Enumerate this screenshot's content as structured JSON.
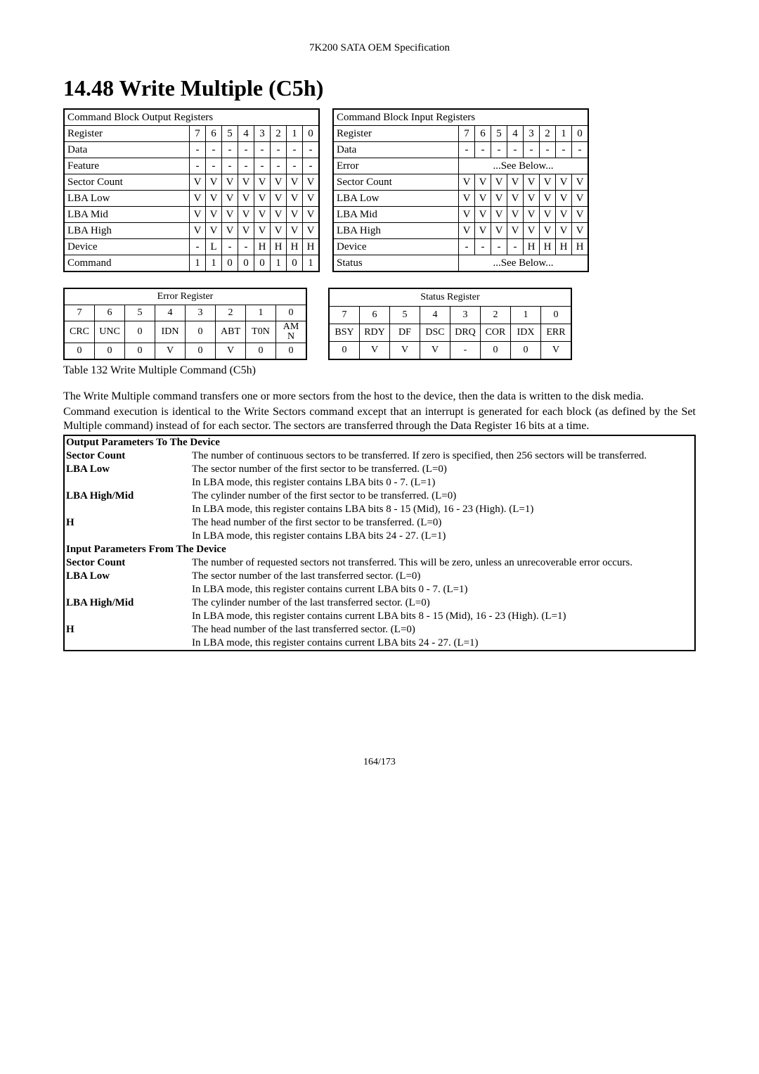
{
  "header": "7K200 SATA OEM Specification",
  "section_title": "14.48   Write Multiple (C5h)",
  "output_block_title": "Command Block Output Registers",
  "input_block_title": "Command Block Input Registers",
  "bit_cols": [
    "7",
    "6",
    "5",
    "4",
    "3",
    "2",
    "1",
    "0"
  ],
  "output_rows": [
    {
      "label": "Register",
      "cells": [
        "7",
        "6",
        "5",
        "4",
        "3",
        "2",
        "1",
        "0"
      ]
    },
    {
      "label": "Data",
      "cells": [
        "-",
        "-",
        "-",
        "-",
        "-",
        "-",
        "-",
        "-"
      ]
    },
    {
      "label": "Feature",
      "cells": [
        "-",
        "-",
        "-",
        "-",
        "-",
        "-",
        "-",
        "-"
      ]
    },
    {
      "label": "Sector Count",
      "cells": [
        "V",
        "V",
        "V",
        "V",
        "V",
        "V",
        "V",
        "V"
      ]
    },
    {
      "label": "LBA Low",
      "cells": [
        "V",
        "V",
        "V",
        "V",
        "V",
        "V",
        "V",
        "V"
      ]
    },
    {
      "label": "LBA Mid",
      "cells": [
        "V",
        "V",
        "V",
        "V",
        "V",
        "V",
        "V",
        "V"
      ]
    },
    {
      "label": "LBA High",
      "cells": [
        "V",
        "V",
        "V",
        "V",
        "V",
        "V",
        "V",
        "V"
      ]
    },
    {
      "label": "Device",
      "cells": [
        "-",
        "L",
        "-",
        "-",
        "H",
        "H",
        "H",
        "H"
      ]
    },
    {
      "label": "Command",
      "cells": [
        "1",
        "1",
        "0",
        "0",
        "0",
        "1",
        "0",
        "1"
      ]
    }
  ],
  "input_rows": [
    {
      "label": "Register",
      "cells": [
        "7",
        "6",
        "5",
        "4",
        "3",
        "2",
        "1",
        "0"
      ]
    },
    {
      "label": "Data",
      "cells": [
        "-",
        "-",
        "-",
        "-",
        "-",
        "-",
        "-",
        "-"
      ]
    },
    {
      "label": "Error",
      "span": "...See Below..."
    },
    {
      "label": "Sector Count",
      "cells": [
        "V",
        "V",
        "V",
        "V",
        "V",
        "V",
        "V",
        "V"
      ]
    },
    {
      "label": "LBA Low",
      "cells": [
        "V",
        "V",
        "V",
        "V",
        "V",
        "V",
        "V",
        "V"
      ]
    },
    {
      "label": "LBA Mid",
      "cells": [
        "V",
        "V",
        "V",
        "V",
        "V",
        "V",
        "V",
        "V"
      ]
    },
    {
      "label": "LBA High",
      "cells": [
        "V",
        "V",
        "V",
        "V",
        "V",
        "V",
        "V",
        "V"
      ]
    },
    {
      "label": "Device",
      "cells": [
        "-",
        "-",
        "-",
        "-",
        "H",
        "H",
        "H",
        "H"
      ]
    },
    {
      "label": "Status",
      "span": "...See Below..."
    }
  ],
  "error_reg_title": "Error Register",
  "status_reg_title": "Status Register",
  "err_bits_nums": [
    "7",
    "6",
    "5",
    "4",
    "3",
    "2",
    "1",
    "0"
  ],
  "err_bits_names": [
    "CRC",
    "UNC",
    "0",
    "IDN",
    "0",
    "ABT",
    "T0N",
    "AM N"
  ],
  "err_bits_vals": [
    "0",
    "0",
    "0",
    "V",
    "0",
    "V",
    "0",
    "0"
  ],
  "stat_bits_nums": [
    "7",
    "6",
    "5",
    "4",
    "3",
    "2",
    "1",
    "0"
  ],
  "stat_bits_names": [
    "BSY",
    "RDY",
    "DF",
    "DSC",
    "DRQ",
    "COR",
    "IDX",
    "ERR"
  ],
  "stat_bits_vals": [
    "0",
    "V",
    "V",
    "V",
    "-",
    "0",
    "0",
    "V"
  ],
  "caption": "Table 132 Write Multiple Command (C5h)",
  "para1": "The Write Multiple command transfers one or more sectors from the host to the device, then the data is written to the disk media.",
  "para2": "Command execution is identical to the Write Sectors command except that an interrupt is generated for each block (as defined by the Set Multiple command) instead of for each sector. The sectors are transferred through the Data Register 16 bits at a time.",
  "params_out_title": "Output Parameters To The Device",
  "params_in_title": "Input Parameters From The Device",
  "out_params": [
    {
      "name": "Sector Count",
      "lines": [
        "The number of continuous sectors to be transferred. If zero is specified, then 256 sectors will be transferred."
      ]
    },
    {
      "name": "LBA Low",
      "lines": [
        "The sector number of the first sector to be transferred.  (L=0)",
        "In LBA mode, this register contains LBA bits 0 - 7. (L=1)"
      ]
    },
    {
      "name": "LBA High/Mid",
      "lines": [
        "The cylinder number of the first sector to be transferred. (L=0)",
        "In LBA mode, this register contains LBA bits 8 - 15 (Mid), 16 - 23 (High). (L=1)"
      ]
    },
    {
      "name": "H",
      "lines": [
        "The head number of the first sector to be transferred.  (L=0)",
        "In LBA mode, this register contains LBA bits 24 - 27. (L=1)"
      ]
    }
  ],
  "in_params": [
    {
      "name": "Sector Count",
      "lines": [
        "The number of requested sectors not transferred. This will be zero, unless an unrecoverable error occurs."
      ]
    },
    {
      "name": "LBA Low",
      "lines": [
        "The sector number of the last transferred sector.  (L=0)",
        "In LBA mode, this register contains current LBA bits 0 - 7. (L=1)"
      ]
    },
    {
      "name": "LBA High/Mid",
      "lines": [
        "The cylinder number of the last transferred sector. (L=0)",
        "In LBA mode, this register contains current LBA bits 8 - 15 (Mid), 16 - 23 (High). (L=1)"
      ]
    },
    {
      "name": "H",
      "lines": [
        "The head number of the last transferred sector. (L=0)",
        "In LBA mode, this register contains current LBA bits 24 - 27. (L=1)"
      ]
    }
  ],
  "page": "164/173"
}
